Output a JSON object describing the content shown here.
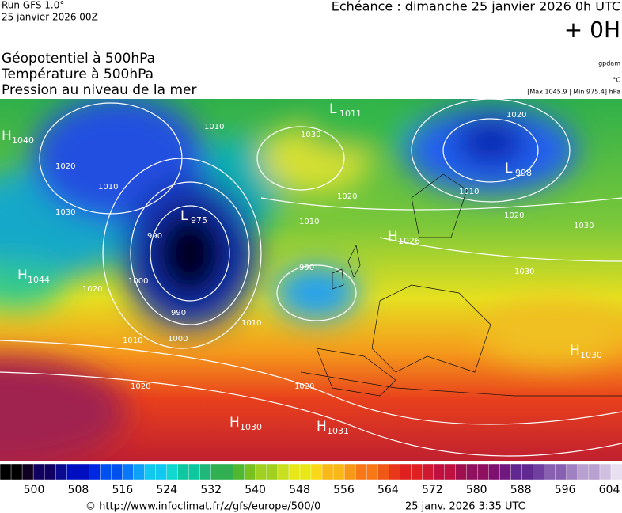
{
  "header": {
    "run": "Run GFS 1.0°",
    "date": "25 janvier 2026 00Z",
    "echeance": "Echéance : dimanche 25 janvier 2026 0h UTC",
    "offset": "+ 0H"
  },
  "layers": [
    "Géopotentiel à 500hPa",
    "Température à 500hPa",
    "Pression au niveau de la mer"
  ],
  "units": [
    "gpdam",
    "°C",
    "[Max 1045.9 | Min 975.4] hPa"
  ],
  "centers": [
    {
      "type": "H",
      "value": "1040"
    },
    {
      "type": "L",
      "value": "975"
    },
    {
      "type": "H",
      "value": "1044"
    },
    {
      "type": "L",
      "value": "1011"
    },
    {
      "type": "L",
      "value": "998"
    },
    {
      "type": "H",
      "value": "1026"
    },
    {
      "type": "H",
      "value": "1030"
    },
    {
      "type": "H",
      "value": "1030"
    },
    {
      "type": "H",
      "value": "1031"
    }
  ],
  "isobar_labels": [
    "1010",
    "1020",
    "1010",
    "1030",
    "990",
    "1000",
    "1020",
    "990",
    "1000",
    "1010",
    "1020",
    "1020",
    "1010",
    "1020",
    "1010",
    "990",
    "1020",
    "1010",
    "1030",
    "1030",
    "1020",
    "1030"
  ],
  "scale": {
    "labels": [
      500,
      508,
      516,
      524,
      532,
      540,
      548,
      556,
      564,
      572,
      580,
      588,
      596,
      604
    ]
  },
  "footer": {
    "url": "© http://www.infoclimat.fr/z/gfs/europe/500/0",
    "time": "25 janv. 2026  3:35 UTC"
  }
}
